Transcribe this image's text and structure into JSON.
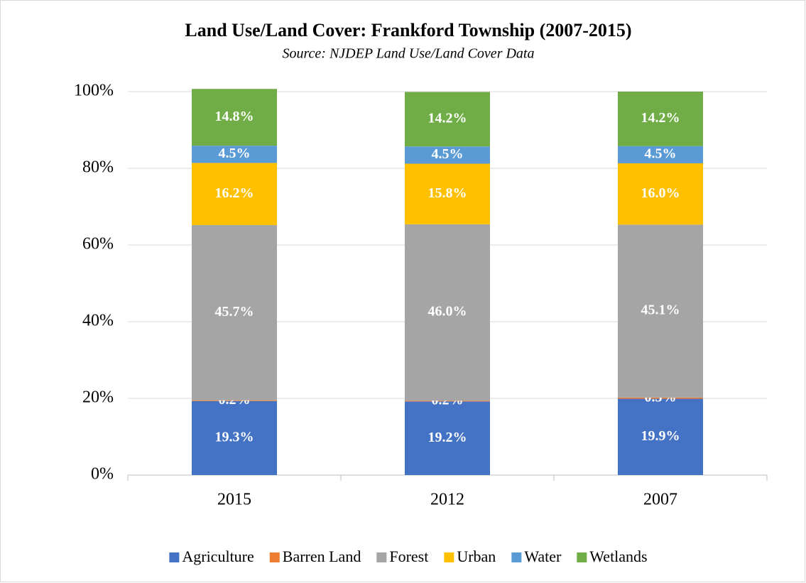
{
  "chart_data": {
    "type": "bar",
    "stacked": true,
    "title": "Land Use/Land Cover: Frankford Township (2007-2015)",
    "subtitle": "Source: NJDEP Land Use/Land Cover Data",
    "categories": [
      "2015",
      "2012",
      "2007"
    ],
    "series": [
      {
        "name": "Agriculture",
        "color": "#4472c4",
        "values": [
          19.3,
          19.2,
          19.9
        ],
        "value_labels": [
          "19.3%",
          "19.2%",
          "19.9%"
        ]
      },
      {
        "name": "Barren Land",
        "color": "#ed7d31",
        "values": [
          0.2,
          0.2,
          0.3
        ],
        "value_labels": [
          "0.2%",
          "0.2%",
          "0.3%"
        ]
      },
      {
        "name": "Forest",
        "color": "#a5a5a5",
        "values": [
          45.7,
          46.0,
          45.1
        ],
        "value_labels": [
          "45.7%",
          "46.0%",
          "45.1%"
        ]
      },
      {
        "name": "Urban",
        "color": "#ffc000",
        "values": [
          16.2,
          15.8,
          16.0
        ],
        "value_labels": [
          "16.2%",
          "15.8%",
          "16.0%"
        ]
      },
      {
        "name": "Water",
        "color": "#5b9bd5",
        "values": [
          4.5,
          4.5,
          4.5
        ],
        "value_labels": [
          "4.5%",
          "4.5%",
          "4.5%"
        ]
      },
      {
        "name": "Wetlands",
        "color": "#70ad47",
        "values": [
          14.8,
          14.2,
          14.2
        ],
        "value_labels": [
          "14.8%",
          "14.2%",
          "14.2%"
        ]
      }
    ],
    "ylim": [
      0,
      100
    ],
    "yticks": [
      {
        "value": 0,
        "label": "0%"
      },
      {
        "value": 20,
        "label": "20%"
      },
      {
        "value": 40,
        "label": "40%"
      },
      {
        "value": 60,
        "label": "60%"
      },
      {
        "value": 80,
        "label": "80%"
      },
      {
        "value": 100,
        "label": "100%"
      }
    ],
    "grid": true,
    "legend": "bottom"
  }
}
